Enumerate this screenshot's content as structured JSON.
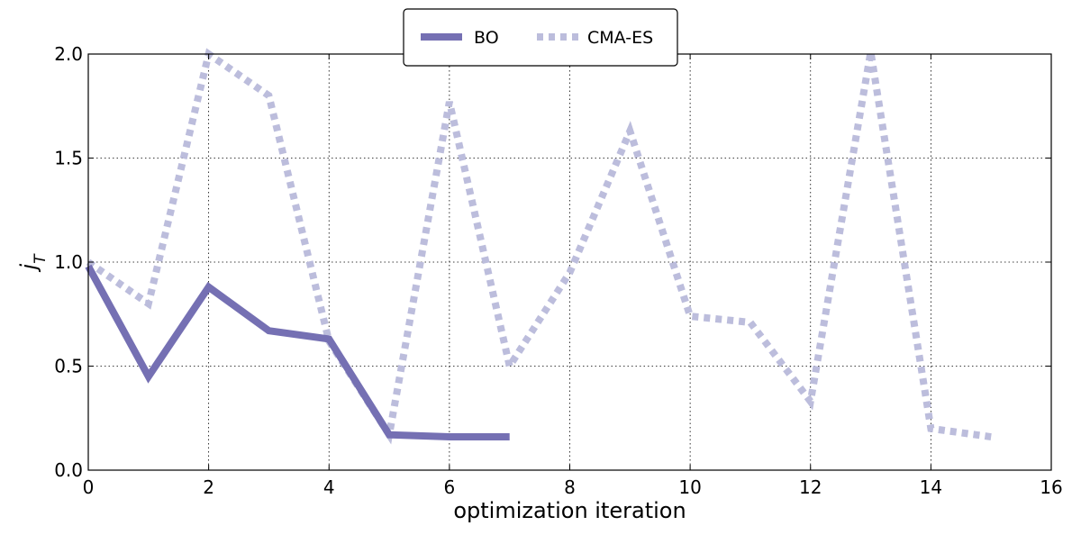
{
  "chart_data": {
    "type": "line",
    "xlabel": "optimization iteration",
    "ylabel_main": "j",
    "ylabel_sub": "T",
    "xlim": [
      0,
      16
    ],
    "ylim": [
      0,
      2
    ],
    "xticks": [
      0,
      2,
      4,
      6,
      8,
      10,
      12,
      14,
      16
    ],
    "yticks": [
      0,
      0.5,
      1,
      1.5,
      2
    ],
    "xtick_labels": [
      "0",
      "2",
      "4",
      "6",
      "8",
      "10",
      "12",
      "14",
      "16"
    ],
    "ytick_labels": [
      "0.0",
      "0.5",
      "1.0",
      "1.5",
      "2.0"
    ],
    "grid": true,
    "legend_position": "top-center",
    "series": [
      {
        "name": "BO",
        "color": "#7570b3",
        "style": "solid",
        "x": [
          0,
          1,
          2,
          3,
          4,
          5,
          6,
          7
        ],
        "y": [
          0.98,
          0.45,
          0.88,
          0.67,
          0.63,
          0.17,
          0.16,
          0.16
        ]
      },
      {
        "name": "CMA-ES",
        "color": "#bcbddc",
        "style": "dotted",
        "x": [
          0,
          1,
          2,
          3,
          4,
          5,
          6,
          7,
          8,
          9,
          10,
          11,
          12,
          13,
          14,
          15
        ],
        "y": [
          1.0,
          0.8,
          2.0,
          1.8,
          0.62,
          0.17,
          1.77,
          0.5,
          0.95,
          1.63,
          0.74,
          0.71,
          0.33,
          2.01,
          0.2,
          0.16
        ]
      }
    ]
  }
}
